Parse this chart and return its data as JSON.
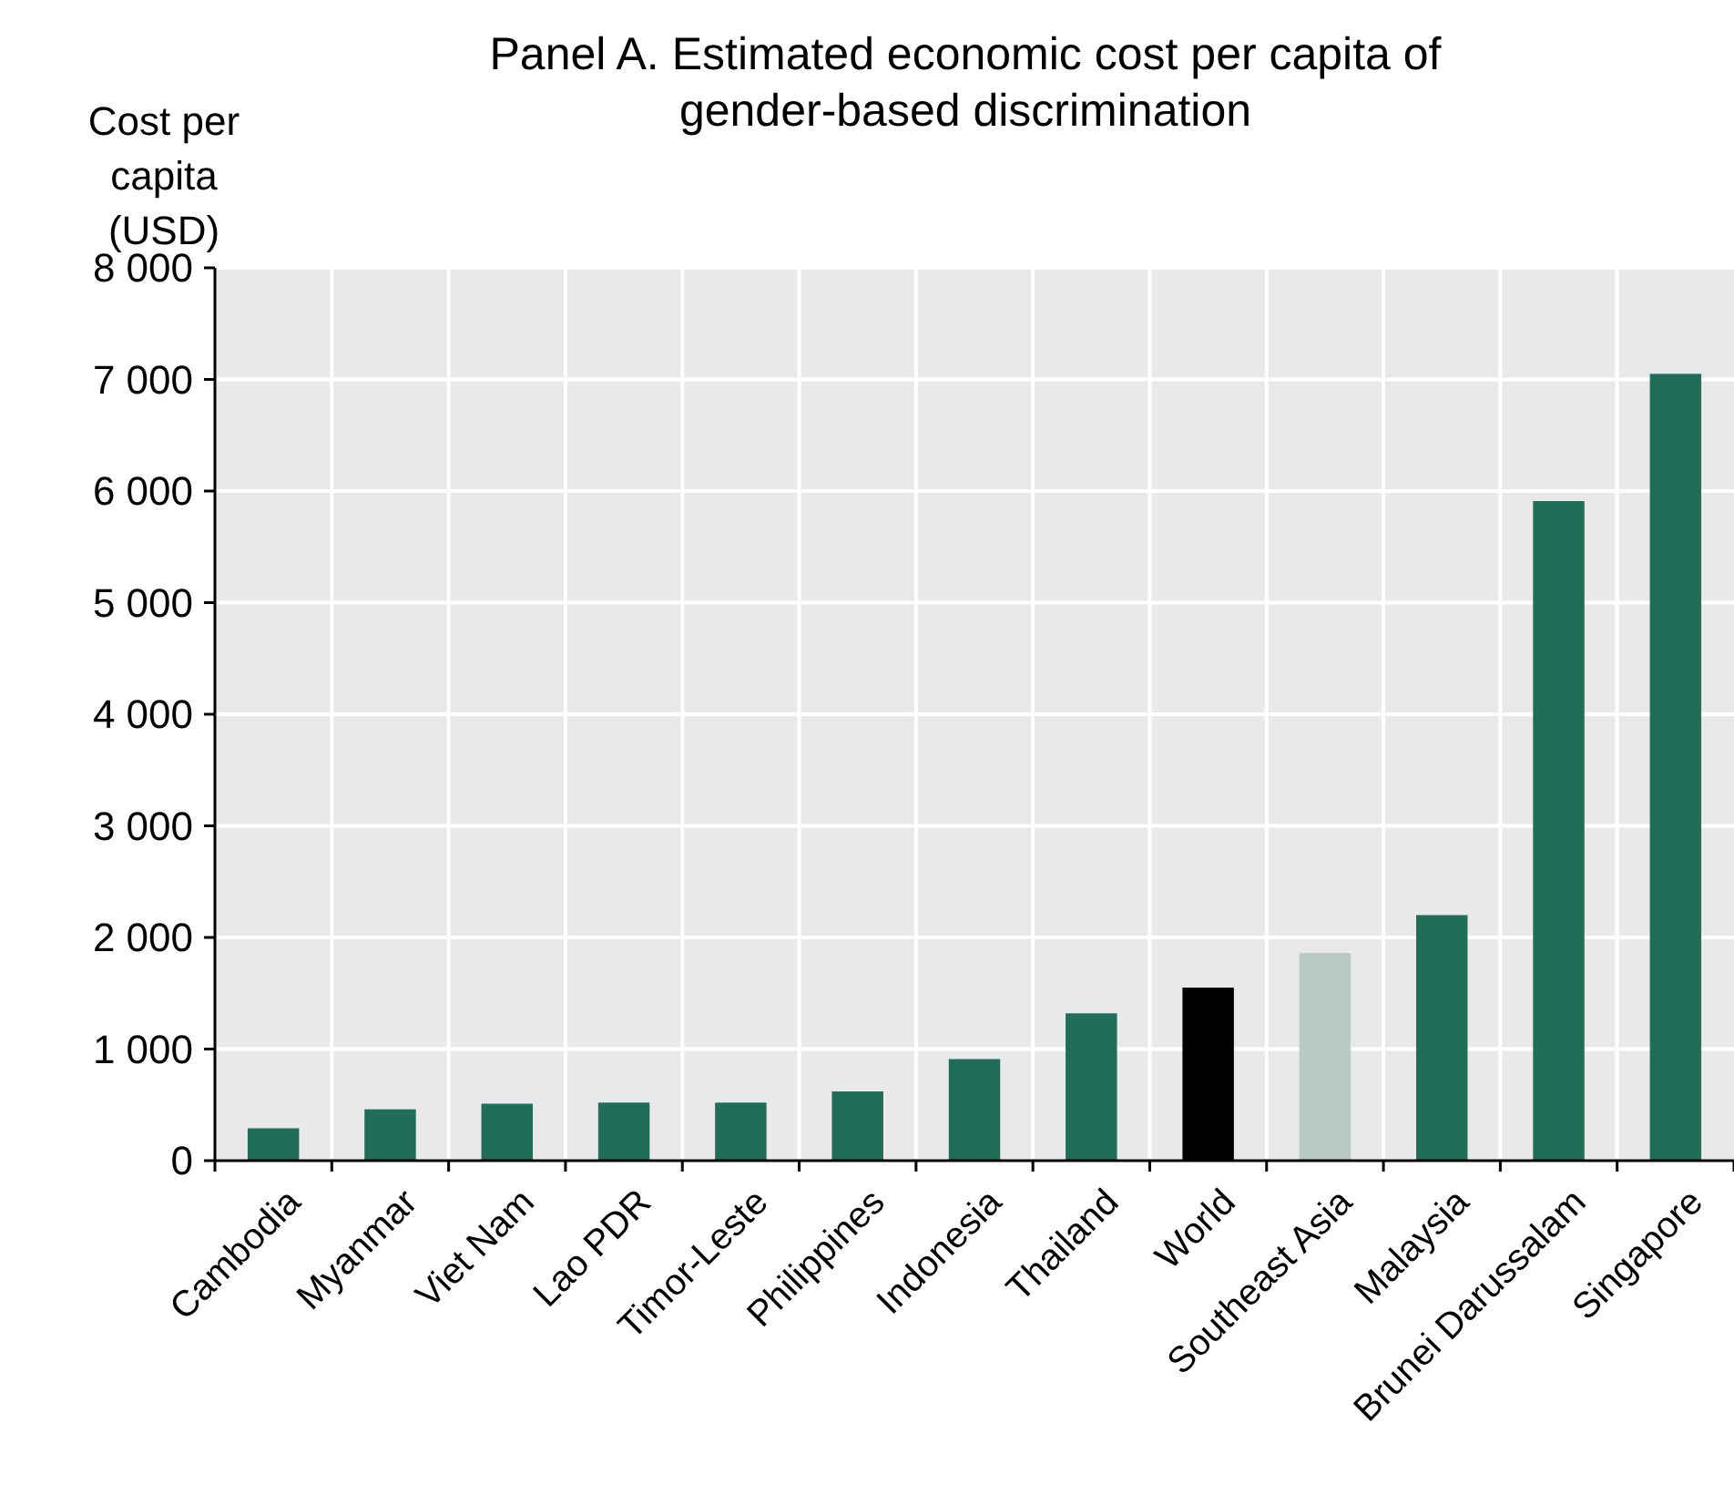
{
  "chart_data": {
    "type": "bar",
    "title": "Panel A. Estimated economic cost per capita of gender-based discrimination",
    "ylabel": "Cost per capita (USD)",
    "categories": [
      "Cambodia",
      "Myanmar",
      "Viet Nam",
      "Lao PDR",
      "Timor-Leste",
      "Philippines",
      "Indonesia",
      "Thailand",
      "World",
      "Southeast Asia",
      "Malaysia",
      "Brunei Darussalam",
      "Singapore"
    ],
    "values": [
      290,
      460,
      510,
      520,
      520,
      620,
      910,
      1320,
      1550,
      1860,
      2200,
      5910,
      7050
    ],
    "colors": [
      "#206e58",
      "#206e58",
      "#206e58",
      "#206e58",
      "#206e58",
      "#206e58",
      "#206e58",
      "#206e58",
      "#000000",
      "#b9c9c3",
      "#206e58",
      "#206e58",
      "#206e58"
    ],
    "ylim": [
      0,
      8000
    ],
    "yticks": [
      0,
      {
        "value": 1000,
        "label": "1 000"
      },
      {
        "value": 2000,
        "label": "2 000"
      },
      {
        "value": 3000,
        "label": "3 000"
      },
      {
        "value": 4000,
        "label": "4 000"
      },
      {
        "value": 5000,
        "label": "5 000"
      },
      {
        "value": 6000,
        "label": "6 000"
      },
      {
        "value": 7000,
        "label": "7 000"
      },
      {
        "value": 8000,
        "label": "8 000"
      }
    ],
    "grid": true
  }
}
